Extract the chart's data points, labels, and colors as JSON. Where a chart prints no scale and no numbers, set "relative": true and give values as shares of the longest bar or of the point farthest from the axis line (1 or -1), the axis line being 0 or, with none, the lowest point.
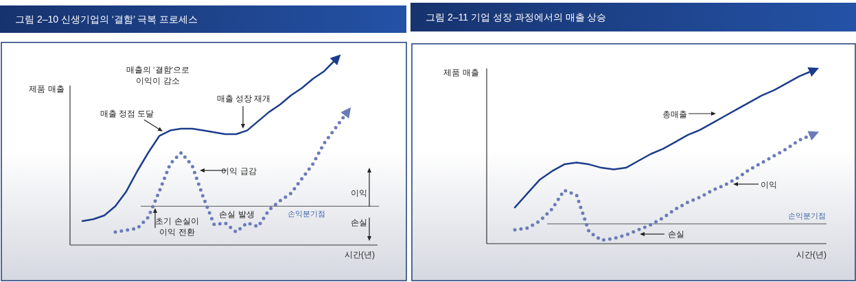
{
  "chart_data": [
    {
      "type": "line",
      "relative": true,
      "title": "그림 2–10 신생기업의 ‘결함’ 극복 프로세스",
      "xlabel": "시간(년)",
      "ylabel": "제품 매출",
      "categories": [
        null,
        null,
        null,
        null,
        null,
        null,
        null,
        null,
        null,
        null,
        null,
        null,
        null,
        null,
        null,
        null,
        null,
        null,
        null,
        null,
        null,
        null,
        null,
        null,
        null
      ],
      "series": [
        {
          "color": "#1c3d8c",
          "line_style": "solid",
          "values": [
            0.13,
            0.14,
            0.16,
            0.21,
            0.29,
            0.4,
            0.5,
            0.59,
            0.62,
            0.63,
            0.63,
            0.62,
            0.61,
            0.6,
            0.6,
            0.62,
            0.67,
            0.72,
            0.76,
            0.81,
            0.85,
            0.9,
            0.94,
            1,
            null
          ]
        },
        {
          "color": "#6b7bb8",
          "line_style": "dotted",
          "values": [
            null,
            null,
            null,
            0.07,
            0.08,
            0.09,
            0.15,
            0.29,
            0.44,
            0.5,
            0.43,
            0.26,
            0.11,
            0.12,
            0.07,
            0.12,
            0.1,
            0.19,
            0.24,
            0.28,
            0.36,
            0.44,
            0.55,
            0.63,
            0.71
          ]
        }
      ],
      "ref_lines": [
        {
          "axis": "y",
          "value": 0.21,
          "label": "손익분기점",
          "color": "#555555"
        }
      ],
      "annotations": [
        "매출의 ‘결함’으로\n이익이 감소",
        "매출 정점 도달",
        "매출 성장 재개",
        "이익 급감",
        "초기 손실이\n이익 전환",
        "손실 발생",
        "이익",
        "손실"
      ]
    },
    {
      "type": "line",
      "relative": true,
      "title": "그림 2–11 기업 성장 과정에서의 매출 상승",
      "xlabel": "시간(년)",
      "ylabel": "제품 매출",
      "categories": [
        null,
        null,
        null,
        null,
        null,
        null,
        null,
        null,
        null,
        null,
        null,
        null,
        null,
        null,
        null,
        null,
        null,
        null,
        null,
        null,
        null,
        null,
        null,
        null,
        null
      ],
      "series": [
        {
          "name": "총매출",
          "color": "#1c3d8c",
          "line_style": "solid",
          "values": [
            0.21,
            0.29,
            0.37,
            0.42,
            0.46,
            0.47,
            0.46,
            0.44,
            0.43,
            0.44,
            0.48,
            0.52,
            0.55,
            0.59,
            0.63,
            0.66,
            0.7,
            0.74,
            0.78,
            0.82,
            0.86,
            0.89,
            0.93,
            0.97,
            1
          ]
        },
        {
          "name": "이익",
          "color": "#6b7bb8",
          "line_style": "dotted",
          "values": [
            0.08,
            0.09,
            0.13,
            0.2,
            0.31,
            0.28,
            0.07,
            0.02,
            0.03,
            0.05,
            0.08,
            0.11,
            0.15,
            0.2,
            0.24,
            0.27,
            0.31,
            0.34,
            0.38,
            0.43,
            0.47,
            0.51,
            0.55,
            0.6,
            0.63
          ]
        }
      ],
      "ref_lines": [
        {
          "axis": "y",
          "value": 0.115,
          "label": "손익분기점",
          "color": "#555555"
        }
      ],
      "annotations": [
        "손실"
      ]
    }
  ]
}
